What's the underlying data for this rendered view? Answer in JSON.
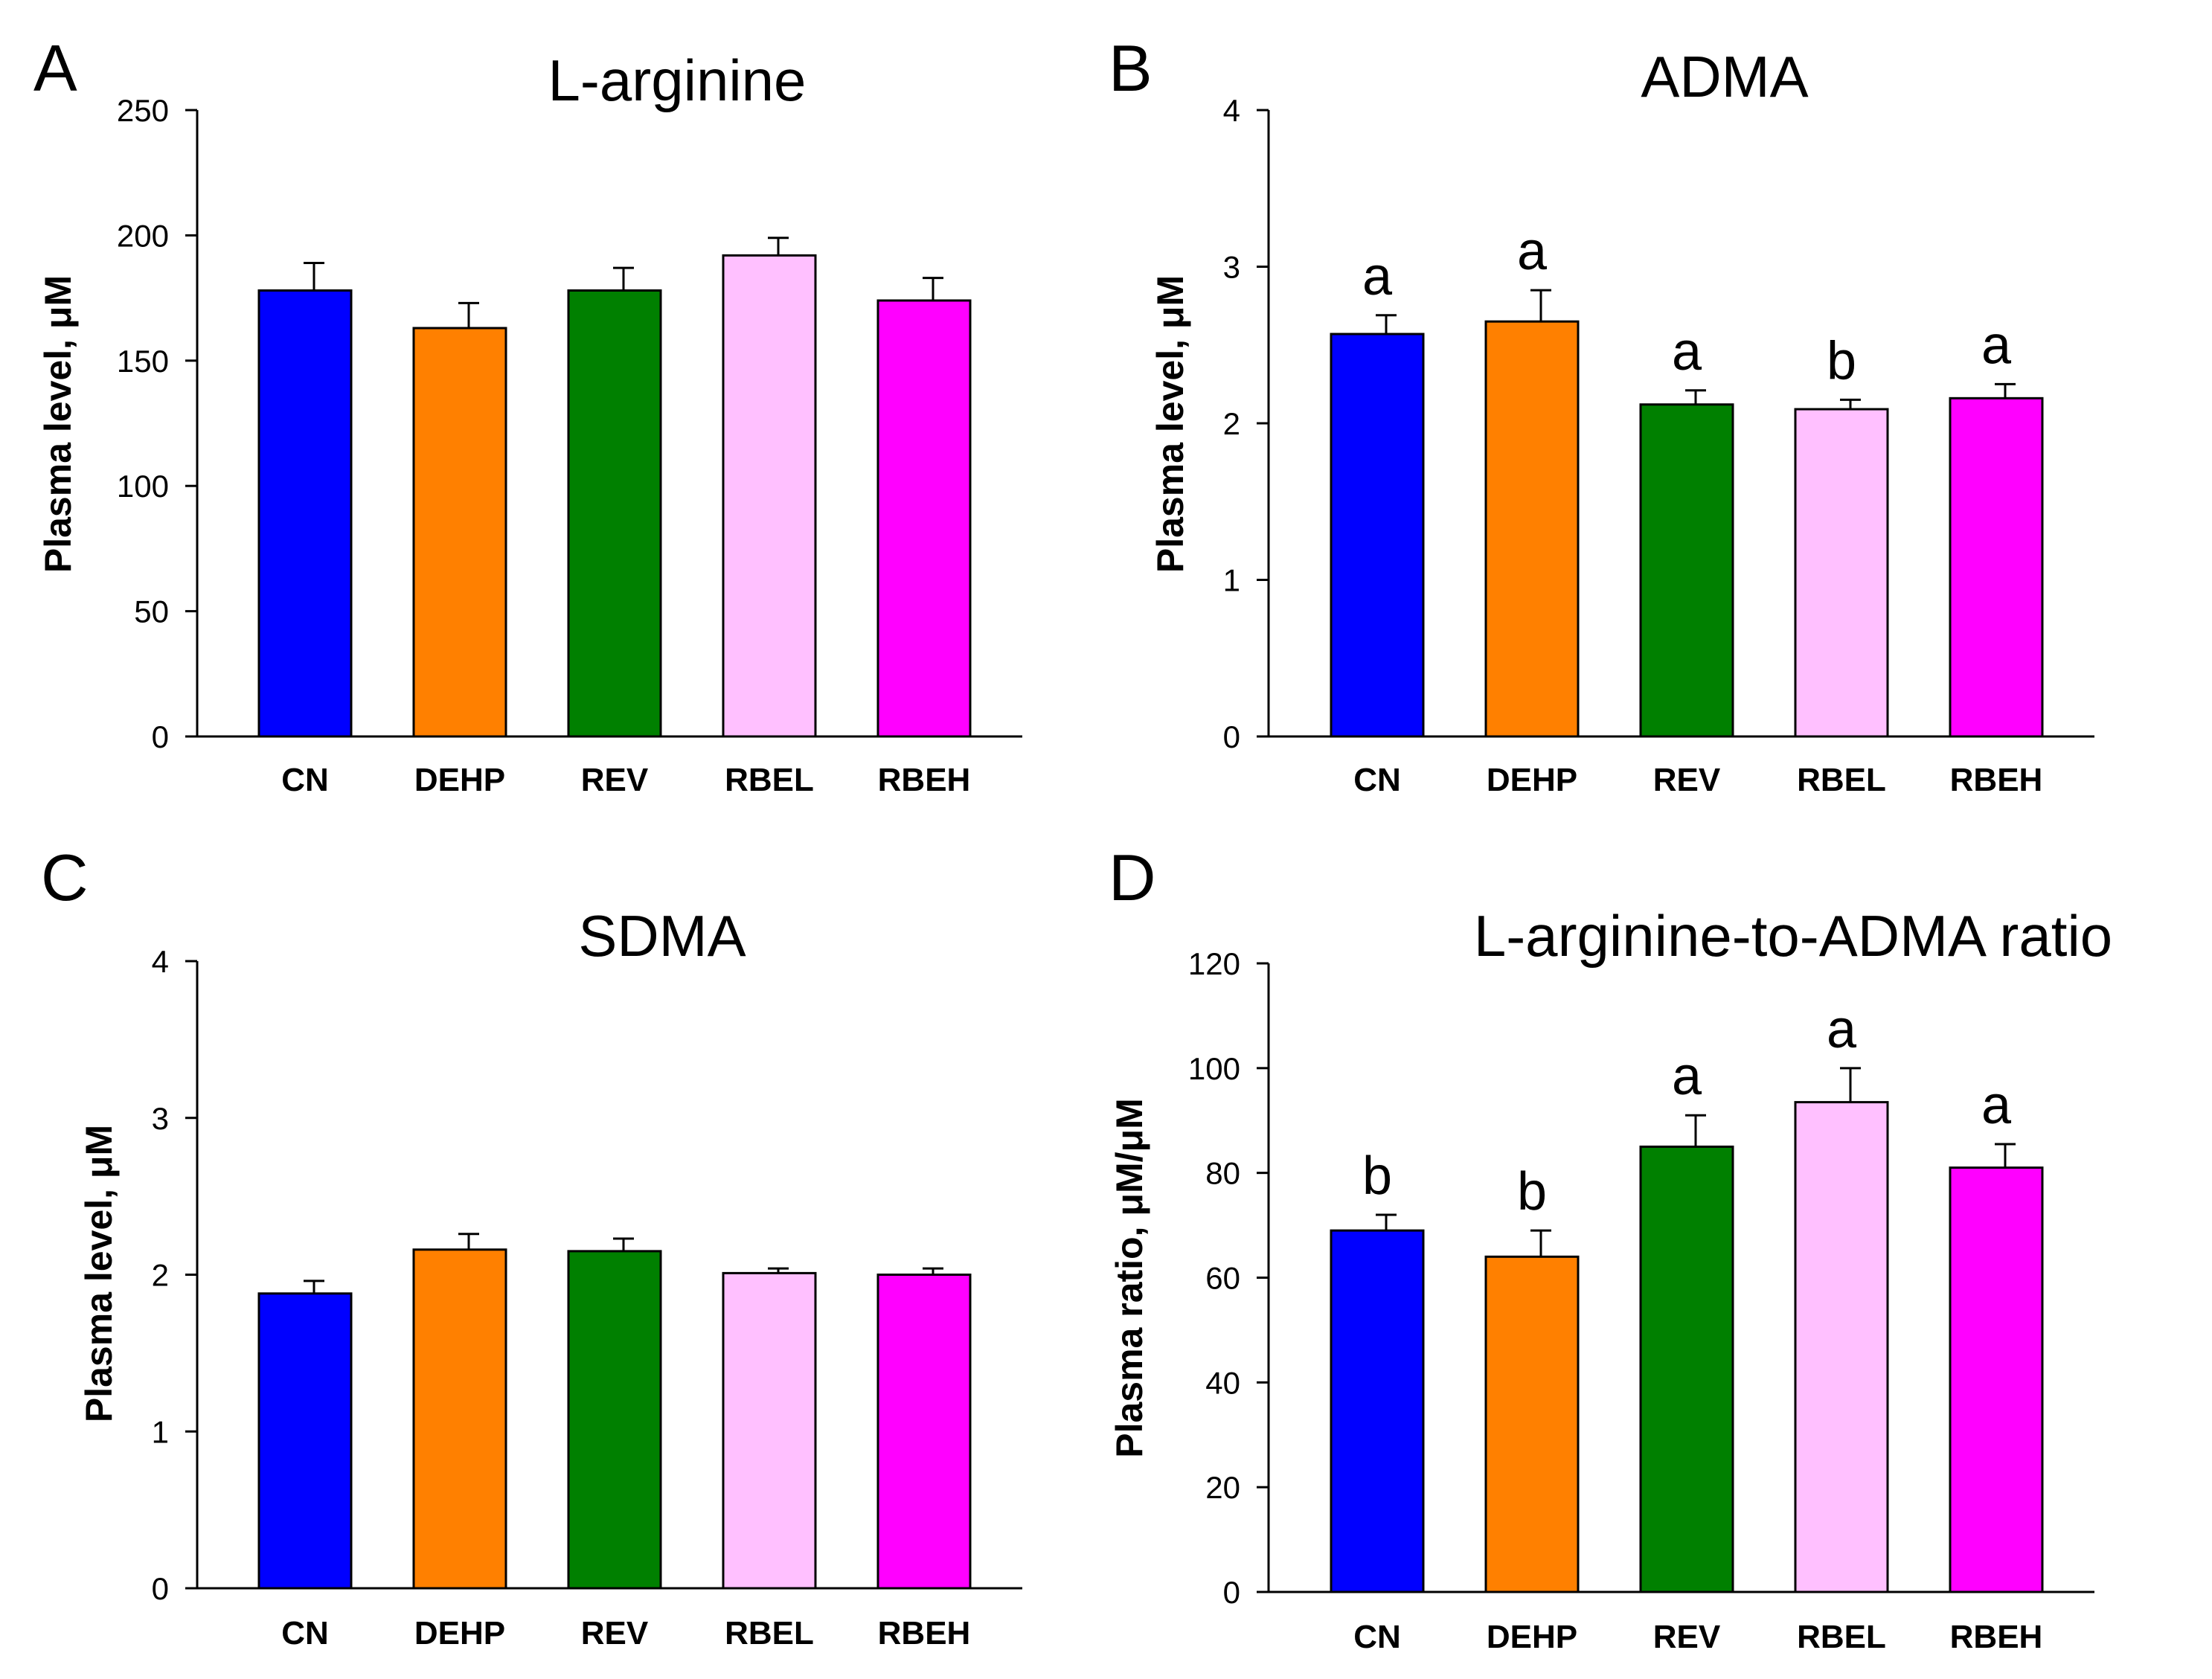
{
  "chart_data": [
    {
      "panel": "A",
      "type": "bar",
      "title": "L-arginine",
      "xlabel": "",
      "ylabel": "Plasma level, μM",
      "ylim": [
        0,
        250
      ],
      "yticks": [
        0,
        50,
        100,
        150,
        200,
        250
      ],
      "categories": [
        "CN",
        "DEHP",
        "REV",
        "RBEL",
        "RBEH"
      ],
      "values": [
        178,
        163,
        178,
        192,
        174
      ],
      "errors": [
        11,
        10,
        9,
        7,
        9
      ],
      "significance": []
    },
    {
      "panel": "B",
      "type": "bar",
      "title": "ADMA",
      "xlabel": "",
      "ylabel": "Plasma level, μM",
      "ylim": [
        0,
        4
      ],
      "yticks": [
        0,
        1,
        2,
        3,
        4
      ],
      "categories": [
        "CN",
        "DEHP",
        "REV",
        "RBEL",
        "RBEH"
      ],
      "values": [
        2.57,
        2.65,
        2.12,
        2.09,
        2.16
      ],
      "errors": [
        0.12,
        0.2,
        0.09,
        0.06,
        0.09
      ],
      "significance": [
        "a",
        "a",
        "a",
        "b",
        "a"
      ]
    },
    {
      "panel": "C",
      "type": "bar",
      "title": "SDMA",
      "xlabel": "",
      "ylabel": "Plasma level, μM",
      "ylim": [
        0,
        4
      ],
      "yticks": [
        0,
        1,
        2,
        3,
        4
      ],
      "categories": [
        "CN",
        "DEHP",
        "REV",
        "RBEL",
        "RBEH"
      ],
      "values": [
        1.88,
        2.16,
        2.15,
        2.01,
        2.0
      ],
      "errors": [
        0.08,
        0.1,
        0.08,
        0.03,
        0.04
      ],
      "significance": []
    },
    {
      "panel": "D",
      "type": "bar",
      "title": "L-arginine-to-ADMA ratio",
      "xlabel": "",
      "ylabel": "Plasma ratio, μM/μM",
      "ylim": [
        0,
        120
      ],
      "yticks": [
        0,
        20,
        40,
        60,
        80,
        100,
        120
      ],
      "categories": [
        "CN",
        "DEHP",
        "REV",
        "RBEL",
        "RBEH"
      ],
      "values": [
        69,
        64,
        85,
        93.5,
        81
      ],
      "errors": [
        3,
        5,
        6,
        6.5,
        4.5
      ],
      "significance": [
        "b",
        "b",
        "a",
        "a",
        "a"
      ]
    }
  ],
  "colors": {
    "CN": "#0000FF",
    "DEHP": "#FF8000",
    "REV": "#008000",
    "RBEL": "#FFC0FF",
    "RBEH": "#FF00FF"
  }
}
